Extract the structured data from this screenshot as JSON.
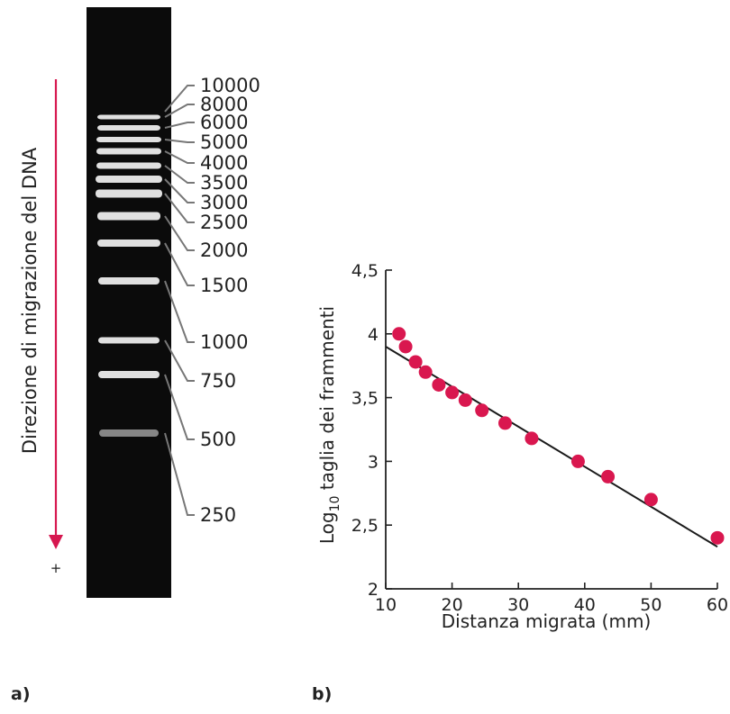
{
  "panels": {
    "a_label": "a)",
    "b_label": "b)"
  },
  "gel": {
    "migration_axis_label": "Direzione di migrazione del DNA",
    "positive_pole": "+",
    "arrow_color": "#d6174f",
    "lane_color": "#0b0b0b",
    "band_color": "#ececec",
    "markers": [
      {
        "size": "10000",
        "band": false
      },
      {
        "size": "8000",
        "band": true
      },
      {
        "size": "6000",
        "band": true
      },
      {
        "size": "5000",
        "band": true
      },
      {
        "size": "4000",
        "band": true
      },
      {
        "size": "3500",
        "band": true
      },
      {
        "size": "3000",
        "band": true
      },
      {
        "size": "2500",
        "band": true
      },
      {
        "size": "2000",
        "band": true
      },
      {
        "size": "1500",
        "band": true
      },
      {
        "size": "1000",
        "band": true
      },
      {
        "size": "750",
        "band": true
      },
      {
        "size": "500",
        "band": true
      },
      {
        "size": "250",
        "band": true
      }
    ]
  },
  "chart_data": {
    "type": "scatter",
    "xlabel": "Distanza migrata (mm)",
    "ylabel_prefix": "Log",
    "ylabel_subscript": "10",
    "ylabel_suffix": " taglia dei frammenti",
    "xlim": [
      10,
      60
    ],
    "ylim": [
      2,
      4.5
    ],
    "xticks": [
      10,
      20,
      30,
      40,
      50,
      60
    ],
    "xtick_labels": [
      "10",
      "20",
      "30",
      "40",
      "50",
      "60"
    ],
    "yticks": [
      2,
      2.5,
      3,
      3.5,
      4,
      4.5
    ],
    "ytick_labels": [
      "2",
      "2,5",
      "3",
      "3,5",
      "4",
      "4,5"
    ],
    "grid": false,
    "point_color": "#d9174f",
    "line_color": "#1a1a1a",
    "points": [
      {
        "x": 12,
        "y": 4.0
      },
      {
        "x": 13,
        "y": 3.9
      },
      {
        "x": 14.5,
        "y": 3.78
      },
      {
        "x": 16,
        "y": 3.7
      },
      {
        "x": 18,
        "y": 3.6
      },
      {
        "x": 20,
        "y": 3.54
      },
      {
        "x": 22,
        "y": 3.48
      },
      {
        "x": 24.5,
        "y": 3.4
      },
      {
        "x": 28,
        "y": 3.3
      },
      {
        "x": 32,
        "y": 3.18
      },
      {
        "x": 39,
        "y": 3.0
      },
      {
        "x": 43.5,
        "y": 2.88
      },
      {
        "x": 50,
        "y": 2.7
      },
      {
        "x": 60,
        "y": 2.4
      }
    ],
    "fit_line": {
      "x": [
        10,
        60
      ],
      "y": [
        3.9,
        2.33
      ]
    }
  }
}
